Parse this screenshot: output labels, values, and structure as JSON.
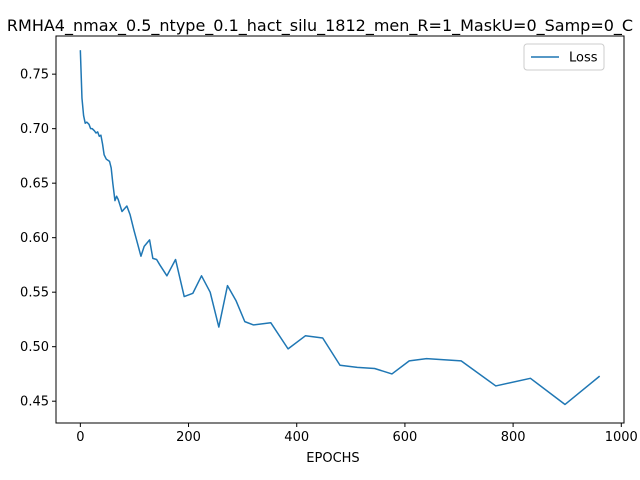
{
  "chart_data": {
    "type": "line",
    "title": "RMHA4_nmax_0.5_ntype_0.1_hact_silu_1812_men_R=1_MaskU=0_Samp=0_C",
    "xlabel": "EPOCHS",
    "ylabel": "",
    "xlim": [
      -45,
      1005
    ],
    "ylim": [
      0.43,
      0.785
    ],
    "xticks": [
      0,
      200,
      400,
      600,
      800,
      1000
    ],
    "yticks": [
      0.45,
      0.5,
      0.55,
      0.6,
      0.65,
      0.7,
      0.75
    ],
    "xtick_labels": [
      "0",
      "200",
      "400",
      "600",
      "800",
      "1000"
    ],
    "ytick_labels": [
      "0.45",
      "0.50",
      "0.55",
      "0.60",
      "0.65",
      "0.70",
      "0.75"
    ],
    "grid": false,
    "legend": "upper right",
    "series": [
      {
        "name": "Loss",
        "color": "#1f77b4",
        "x": [
          0,
          3,
          6,
          9,
          12,
          16,
          19,
          22,
          26,
          29,
          32,
          35,
          38,
          41,
          44,
          48,
          51,
          54,
          57,
          60,
          64,
          67,
          70,
          77,
          86,
          92,
          99,
          105,
          112,
          118,
          128,
          134,
          141,
          147,
          160,
          176,
          192,
          208,
          224,
          240,
          256,
          272,
          288,
          304,
          320,
          352,
          384,
          416,
          448,
          480,
          512,
          544,
          576,
          608,
          640,
          704,
          768,
          832,
          896,
          960
        ],
        "y": [
          0.772,
          0.728,
          0.712,
          0.705,
          0.706,
          0.704,
          0.7,
          0.7,
          0.698,
          0.696,
          0.697,
          0.693,
          0.694,
          0.686,
          0.676,
          0.672,
          0.671,
          0.67,
          0.664,
          0.65,
          0.634,
          0.638,
          0.635,
          0.624,
          0.629,
          0.621,
          0.607,
          0.596,
          0.583,
          0.592,
          0.598,
          0.581,
          0.58,
          0.575,
          0.565,
          0.58,
          0.546,
          0.549,
          0.565,
          0.55,
          0.518,
          0.556,
          0.542,
          0.523,
          0.52,
          0.522,
          0.498,
          0.51,
          0.508,
          0.483,
          0.481,
          0.48,
          0.475,
          0.487,
          0.489,
          0.487,
          0.464,
          0.471,
          0.447,
          0.473
        ]
      }
    ]
  }
}
